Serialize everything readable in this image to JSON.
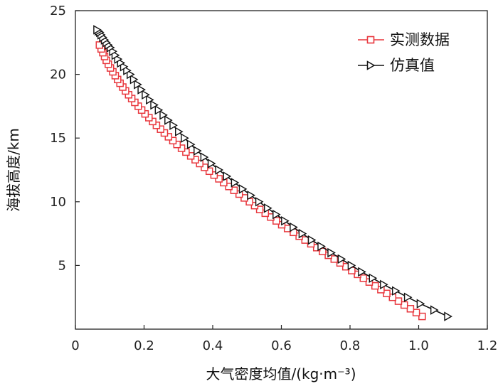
{
  "chart_data": {
    "type": "line",
    "title": "",
    "xlabel": "大气密度均值/(kg·m⁻³)",
    "ylabel": "海拔高度/km",
    "xlim": [
      0,
      1.2
    ],
    "ylim": [
      0,
      25
    ],
    "xticks": [
      0,
      0.2,
      0.4,
      0.6,
      0.8,
      1.0,
      1.2
    ],
    "xtick_labels": [
      "0",
      "0.2",
      "0.4",
      "0.6",
      "0.8",
      "1.0",
      "1.2"
    ],
    "yticks": [
      5,
      10,
      15,
      20,
      25
    ],
    "ytick_labels": [
      "5",
      "10",
      "15",
      "20",
      "25"
    ],
    "grid": false,
    "legend_position": "top-right",
    "series": [
      {
        "name": "实测数据",
        "color": "#e8363c",
        "marker": "square",
        "x": [
          1.01,
          0.993,
          0.976,
          0.958,
          0.941,
          0.924,
          0.907,
          0.89,
          0.873,
          0.856,
          0.839,
          0.822,
          0.805,
          0.788,
          0.771,
          0.754,
          0.737,
          0.72,
          0.703,
          0.686,
          0.669,
          0.652,
          0.635,
          0.618,
          0.601,
          0.585,
          0.569,
          0.553,
          0.537,
          0.522,
          0.507,
          0.492,
          0.477,
          0.462,
          0.447,
          0.432,
          0.418,
          0.404,
          0.39,
          0.376,
          0.362,
          0.349,
          0.336,
          0.322,
          0.309,
          0.296,
          0.284,
          0.271,
          0.259,
          0.248,
          0.236,
          0.225,
          0.214,
          0.203,
          0.193,
          0.183,
          0.173,
          0.164,
          0.155,
          0.146,
          0.138,
          0.13,
          0.123,
          0.116,
          0.109,
          0.102,
          0.096,
          0.09,
          0.085,
          0.08,
          0.075,
          0.07
        ],
        "y": [
          1.0,
          1.3,
          1.6,
          1.9,
          2.2,
          2.5,
          2.8,
          3.1,
          3.4,
          3.7,
          4.0,
          4.3,
          4.6,
          4.9,
          5.2,
          5.5,
          5.8,
          6.1,
          6.4,
          6.7,
          7.0,
          7.3,
          7.6,
          7.9,
          8.2,
          8.5,
          8.8,
          9.1,
          9.4,
          9.7,
          10.0,
          10.3,
          10.6,
          10.9,
          11.2,
          11.5,
          11.8,
          12.1,
          12.4,
          12.7,
          13.0,
          13.3,
          13.6,
          13.9,
          14.2,
          14.5,
          14.8,
          15.1,
          15.4,
          15.7,
          16.0,
          16.3,
          16.6,
          16.9,
          17.2,
          17.5,
          17.8,
          18.1,
          18.4,
          18.7,
          19.0,
          19.3,
          19.6,
          19.9,
          20.2,
          20.5,
          20.8,
          21.1,
          21.4,
          21.7,
          22.0,
          22.3
        ]
      },
      {
        "name": "仿真值",
        "color": "#111111",
        "marker": "triangle-right",
        "x": [
          1.085,
          1.045,
          1.005,
          0.968,
          0.933,
          0.898,
          0.866,
          0.834,
          0.804,
          0.775,
          0.745,
          0.716,
          0.688,
          0.661,
          0.635,
          0.61,
          0.585,
          0.56,
          0.535,
          0.511,
          0.487,
          0.464,
          0.441,
          0.418,
          0.396,
          0.375,
          0.355,
          0.336,
          0.318,
          0.301,
          0.285,
          0.27,
          0.256,
          0.242,
          0.229,
          0.216,
          0.204,
          0.192,
          0.181,
          0.17,
          0.16,
          0.15,
          0.141,
          0.132,
          0.124,
          0.116,
          0.109,
          0.102,
          0.096,
          0.09,
          0.085,
          0.08,
          0.075,
          0.071,
          0.067,
          0.063
        ],
        "y": [
          1.0,
          1.5,
          2.0,
          2.5,
          3.0,
          3.5,
          4.0,
          4.5,
          5.0,
          5.5,
          6.0,
          6.5,
          7.0,
          7.5,
          8.0,
          8.5,
          9.0,
          9.5,
          10.0,
          10.5,
          11.0,
          11.5,
          12.0,
          12.5,
          13.0,
          13.5,
          14.0,
          14.5,
          15.0,
          15.5,
          16.0,
          16.4,
          16.8,
          17.2,
          17.6,
          18.0,
          18.4,
          18.8,
          19.2,
          19.6,
          20.0,
          20.3,
          20.6,
          20.9,
          21.2,
          21.5,
          21.8,
          22.1,
          22.3,
          22.5,
          22.7,
          22.9,
          23.1,
          23.3,
          23.4,
          23.5
        ]
      }
    ]
  }
}
